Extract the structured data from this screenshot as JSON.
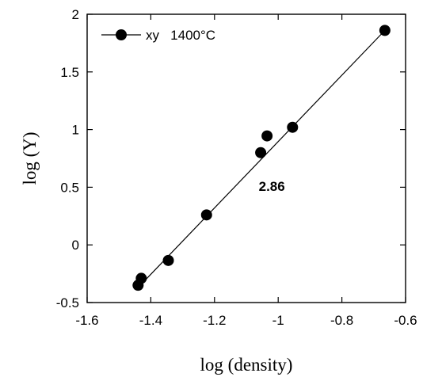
{
  "chart_data": {
    "type": "scatter",
    "xlabel": "log (density)",
    "ylabel": "log (Y)",
    "xlim": [
      -1.6,
      -0.6
    ],
    "ylim": [
      -0.5,
      2
    ],
    "x_ticks": [
      -1.6,
      -1.4,
      -1.2,
      -1,
      -0.8,
      -0.6
    ],
    "y_ticks": [
      -0.5,
      0,
      0.5,
      1,
      1.5,
      2
    ],
    "x_tick_labels": [
      "-1.6",
      "-1.4",
      "-1.2",
      "-1",
      "-0.8",
      "-0.6"
    ],
    "y_tick_labels": [
      "-0.5",
      "0",
      "0.5",
      "1",
      "1.5",
      "2"
    ],
    "grid": false,
    "legend_position": "top-left",
    "series": [
      {
        "name": "xy   1400°C",
        "color": "#000000",
        "marker": "filled-circle",
        "x": [
          -1.44,
          -1.43,
          -1.345,
          -1.225,
          -1.055,
          -1.035,
          -0.955,
          -0.665
        ],
        "y": [
          -0.35,
          -0.29,
          -0.135,
          0.26,
          0.8,
          0.945,
          1.02,
          1.86
        ]
      }
    ],
    "fit_line": {
      "x": [
        -1.44,
        -0.665
      ],
      "y": [
        -0.37,
        1.86
      ]
    },
    "annotations": [
      {
        "text": "2.86",
        "x": -1.02,
        "y": 0.47
      }
    ]
  }
}
